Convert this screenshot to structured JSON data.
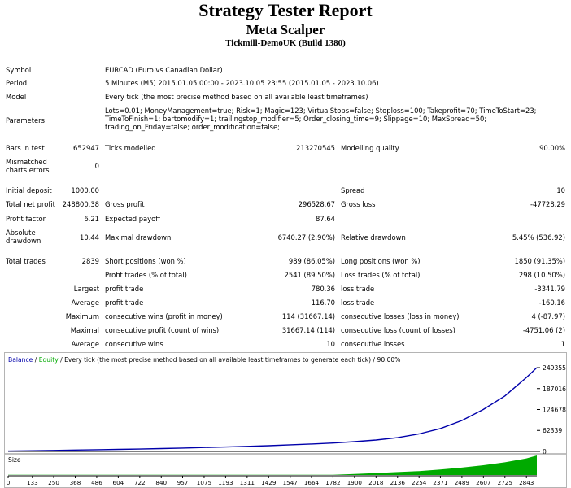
{
  "header": {
    "title": "Strategy Tester Report",
    "subtitle": "Meta Scalper",
    "server": "Tickmill-DemoUK (Build 1380)"
  },
  "info": {
    "symbol_label": "Symbol",
    "symbol_value": "EURCAD (Euro vs Canadian Dollar)",
    "period_label": "Period",
    "period_value": "5 Minutes (M5) 2015.01.05 00:00 - 2023.10.05 23:55 (2015.01.05 - 2023.10.06)",
    "model_label": "Model",
    "model_value": "Every tick (the most precise method based on all available least timeframes)",
    "parameters_label": "Parameters",
    "parameters_value": "Lots=0.01; MoneyManagement=true; Risk=1; Magic=123; VirtualStops=false; Stoploss=100; Takeprofit=70; TimeToStart=23; TimeToFinish=1; bartomodify=1; trailingstop_modifier=5; Order_closing_time=9; Slippage=10; MaxSpread=50; trading_on_Friday=false; order_modification=false;"
  },
  "stats": {
    "bars_label": "Bars in test",
    "bars_value": "652947",
    "ticks_label": "Ticks modelled",
    "ticks_value": "213270545",
    "quality_label": "Modelling quality",
    "quality_value": "90.00%",
    "mismatch_label": "Mismatched charts errors",
    "mismatch_value": "0",
    "deposit_label": "Initial deposit",
    "deposit_value": "1000.00",
    "spread_label": "Spread",
    "spread_value": "10",
    "netprofit_label": "Total net profit",
    "netprofit_value": "248800.38",
    "grossprofit_label": "Gross profit",
    "grossprofit_value": "296528.67",
    "grossloss_label": "Gross loss",
    "grossloss_value": "-47728.29",
    "pf_label": "Profit factor",
    "pf_value": "6.21",
    "payoff_label": "Expected payoff",
    "payoff_value": "87.64",
    "absdd_label": "Absolute drawdown",
    "absdd_value": "10.44",
    "maxdd_label": "Maximal drawdown",
    "maxdd_value": "6740.27 (2.90%)",
    "reldd_label": "Relative drawdown",
    "reldd_value": "5.45% (536.92)",
    "trades_label": "Total trades",
    "trades_value": "2839",
    "short_label": "Short positions (won %)",
    "short_value": "989 (86.05%)",
    "long_label": "Long positions (won %)",
    "long_value": "1850 (91.35%)",
    "ptrades_label": "Profit trades (% of total)",
    "ptrades_value": "2541 (89.50%)",
    "ltrades_label": "Loss trades (% of total)",
    "ltrades_value": "298 (10.50%)",
    "largest_label": "Largest",
    "lprofit_label": "profit trade",
    "lprofit_value": "780.36",
    "lloss_label": "loss trade",
    "lloss_value": "-3341.79",
    "average_label": "Average",
    "aprofit_label": "profit trade",
    "aprofit_value": "116.70",
    "aloss_label": "loss trade",
    "aloss_value": "-160.16",
    "maximum_label": "Maximum",
    "mwins_label": "consecutive wins (profit in money)",
    "mwins_value": "114 (31667.14)",
    "mlosses_label": "consecutive losses (loss in money)",
    "mlosses_value": "4 (-87.97)",
    "maximal_label": "Maximal",
    "mprofit_label": "consecutive profit (count of wins)",
    "mprofit_value": "31667.14 (114)",
    "mloss_label": "consecutive loss (count of losses)",
    "mloss_value": "-4751.06 (2)",
    "average2_label": "Average",
    "awins_label": "consecutive wins",
    "awins_value": "10",
    "alosses_label": "consecutive losses",
    "alosses_value": "1"
  },
  "chart_legend": {
    "balance": "Balance",
    "sep1": " / ",
    "equity": "Equity",
    "rest": " / Every tick (the most precise method based on all available least timeframes to generate each tick) / 90.00%",
    "size_label": "Size"
  },
  "colors": {
    "balance": "#0000aa",
    "equity": "#00aa00",
    "size": "#00aa00"
  },
  "chart_data": {
    "type": "line",
    "series": [
      {
        "name": "Balance",
        "x": [
          0,
          133,
          250,
          368,
          486,
          604,
          722,
          840,
          957,
          1075,
          1193,
          1311,
          1429,
          1547,
          1664,
          1782,
          1900,
          2018,
          2136,
          2254,
          2371,
          2489,
          2607,
          2725,
          2843,
          2900
        ],
        "values": [
          1000,
          2000,
          3000,
          4000,
          5000,
          6000,
          7000,
          8500,
          10000,
          11500,
          13000,
          15000,
          17000,
          19500,
          22000,
          25000,
          29000,
          34000,
          41000,
          52000,
          68000,
          92000,
          125000,
          165000,
          220000,
          249355
        ]
      },
      {
        "name": "Size",
        "x": [
          0,
          1782,
          1900,
          2018,
          2136,
          2254,
          2371,
          2489,
          2607,
          2725,
          2843,
          2900
        ],
        "values": [
          0.01,
          0.01,
          0.05,
          0.1,
          0.15,
          0.2,
          0.28,
          0.38,
          0.5,
          0.65,
          0.85,
          1.0
        ]
      }
    ],
    "y_ticks": [
      "249355",
      "187016",
      "124678",
      "62339",
      "0"
    ],
    "y_tick_values": [
      249355,
      187016,
      124678,
      62339,
      0
    ],
    "x_ticks": [
      "0",
      "133",
      "250",
      "368",
      "486",
      "604",
      "722",
      "840",
      "957",
      "1075",
      "1193",
      "1311",
      "1429",
      "1547",
      "1664",
      "1782",
      "1900",
      "2018",
      "2136",
      "2254",
      "2371",
      "2489",
      "2607",
      "2725",
      "2843"
    ],
    "ylim": [
      0,
      249355
    ],
    "xlim": [
      0,
      2900
    ]
  }
}
